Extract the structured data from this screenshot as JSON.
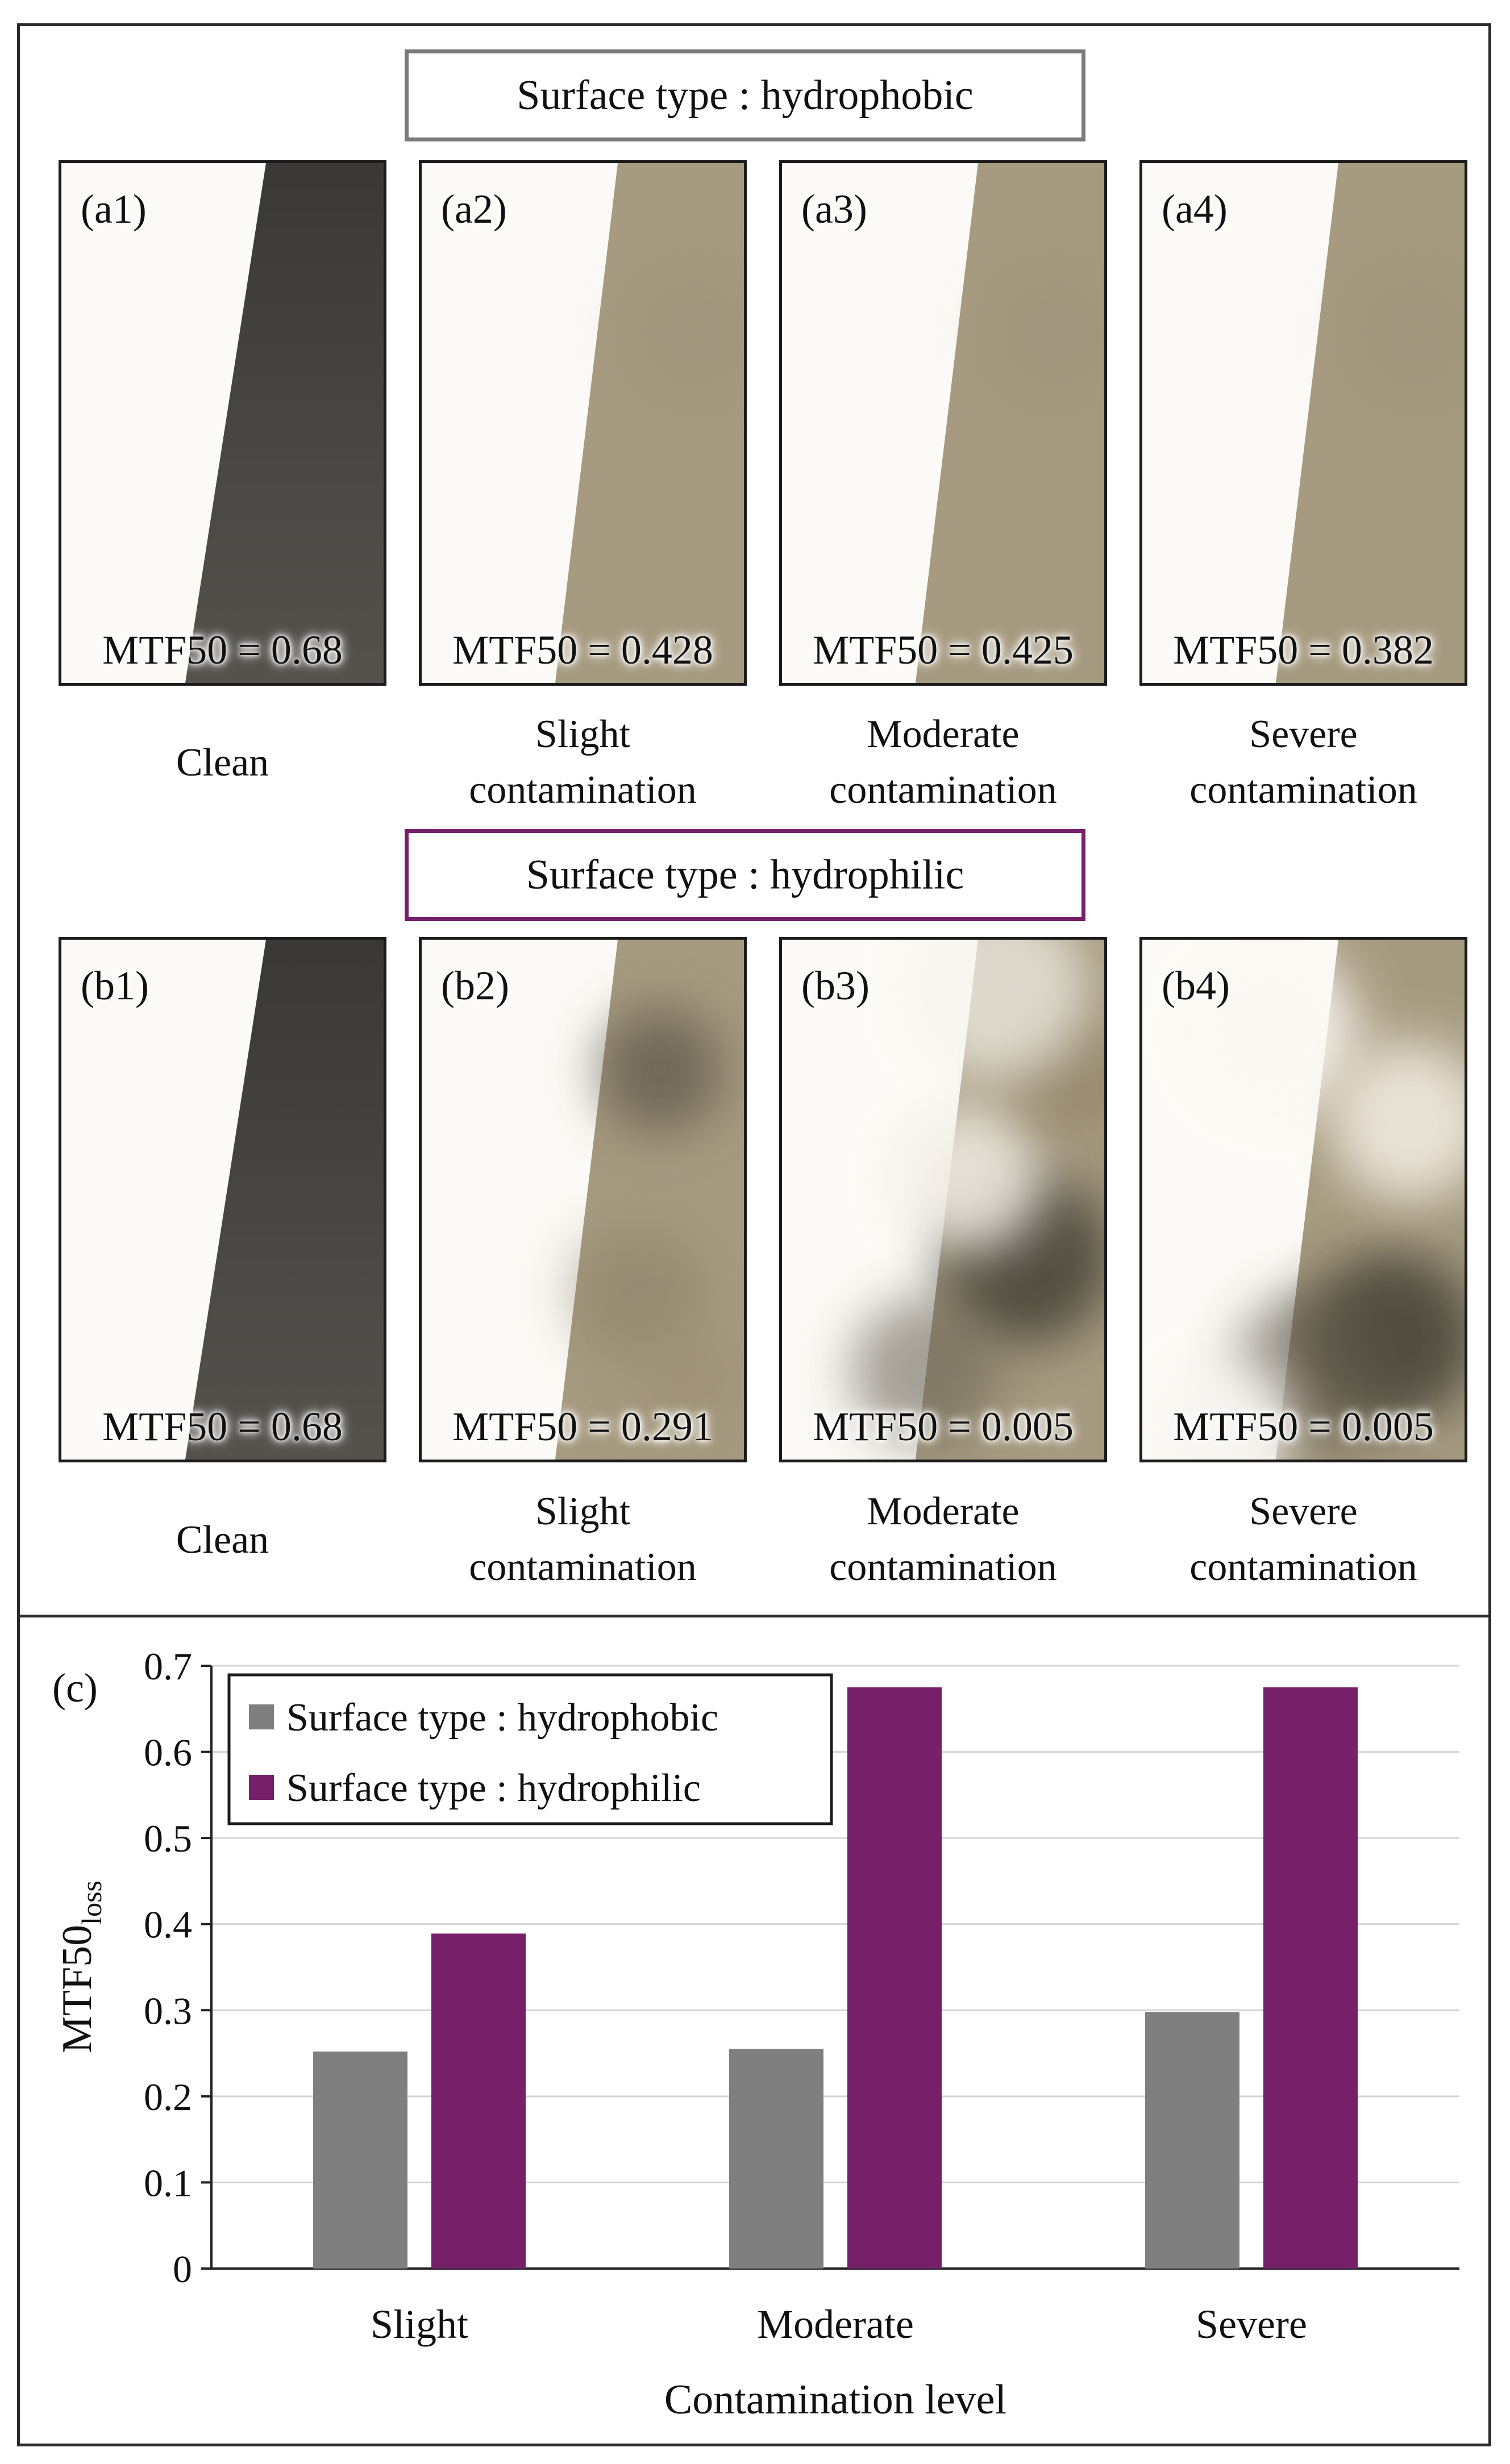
{
  "section_hydrophobic": "Surface type : hydrophobic",
  "section_hydrophilic": "Surface type : hydrophilic",
  "panels_a": [
    {
      "tag": "(a1)",
      "mtf": "MTF50 = 0.68",
      "caption1": "Clean",
      "caption2": ""
    },
    {
      "tag": "(a2)",
      "mtf": "MTF50 = 0.428",
      "caption1": "Slight",
      "caption2": "contamination"
    },
    {
      "tag": "(a3)",
      "mtf": "MTF50 = 0.425",
      "caption1": "Moderate",
      "caption2": "contamination"
    },
    {
      "tag": "(a4)",
      "mtf": "MTF50 = 0.382",
      "caption1": "Severe",
      "caption2": "contamination"
    }
  ],
  "panels_b": [
    {
      "tag": "(b1)",
      "mtf": "MTF50 = 0.68",
      "caption1": "Clean",
      "caption2": ""
    },
    {
      "tag": "(b2)",
      "mtf": "MTF50 = 0.291",
      "caption1": "Slight",
      "caption2": "contamination"
    },
    {
      "tag": "(b3)",
      "mtf": "MTF50 = 0.005",
      "caption1": "Moderate",
      "caption2": "contamination"
    },
    {
      "tag": "(b4)",
      "mtf": "MTF50 = 0.005",
      "caption1": "Severe",
      "caption2": "contamination"
    }
  ],
  "colors": {
    "hydrophobic": "#7f7f7f",
    "hydrophilic": "#76206a",
    "dark_surface": "#3a3836",
    "contaminated_surface": "#a69a80"
  },
  "chart_data": {
    "type": "bar",
    "panel_label": "(c)",
    "categories": [
      "Slight",
      "Moderate",
      "Severe"
    ],
    "series": [
      {
        "name": "Surface type : hydrophobic",
        "values": [
          0.252,
          0.255,
          0.298
        ],
        "color": "#7f7f7f"
      },
      {
        "name": "Surface type : hydrophilic",
        "values": [
          0.389,
          0.675,
          0.675
        ],
        "color": "#76206a"
      }
    ],
    "xlabel": "Contamination level",
    "ylabel": "MTF50",
    "ylabel_subscript": "loss",
    "ylim": [
      0,
      0.7
    ],
    "yticks": [
      "0",
      "0.1",
      "0.2",
      "0.3",
      "0.4",
      "0.5",
      "0.6",
      "0.7"
    ],
    "grid": true,
    "legend_position": "top-left"
  }
}
